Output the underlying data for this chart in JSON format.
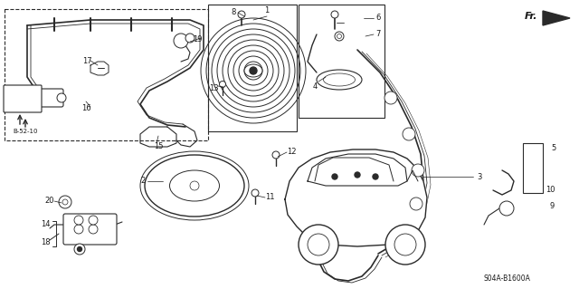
{
  "bg_color": "#ffffff",
  "fig_width": 6.4,
  "fig_height": 3.19,
  "dpi": 100,
  "diagram_code_text": "S04A-B1600A",
  "line_color": "#2a2a2a",
  "text_color": "#1a1a1a"
}
